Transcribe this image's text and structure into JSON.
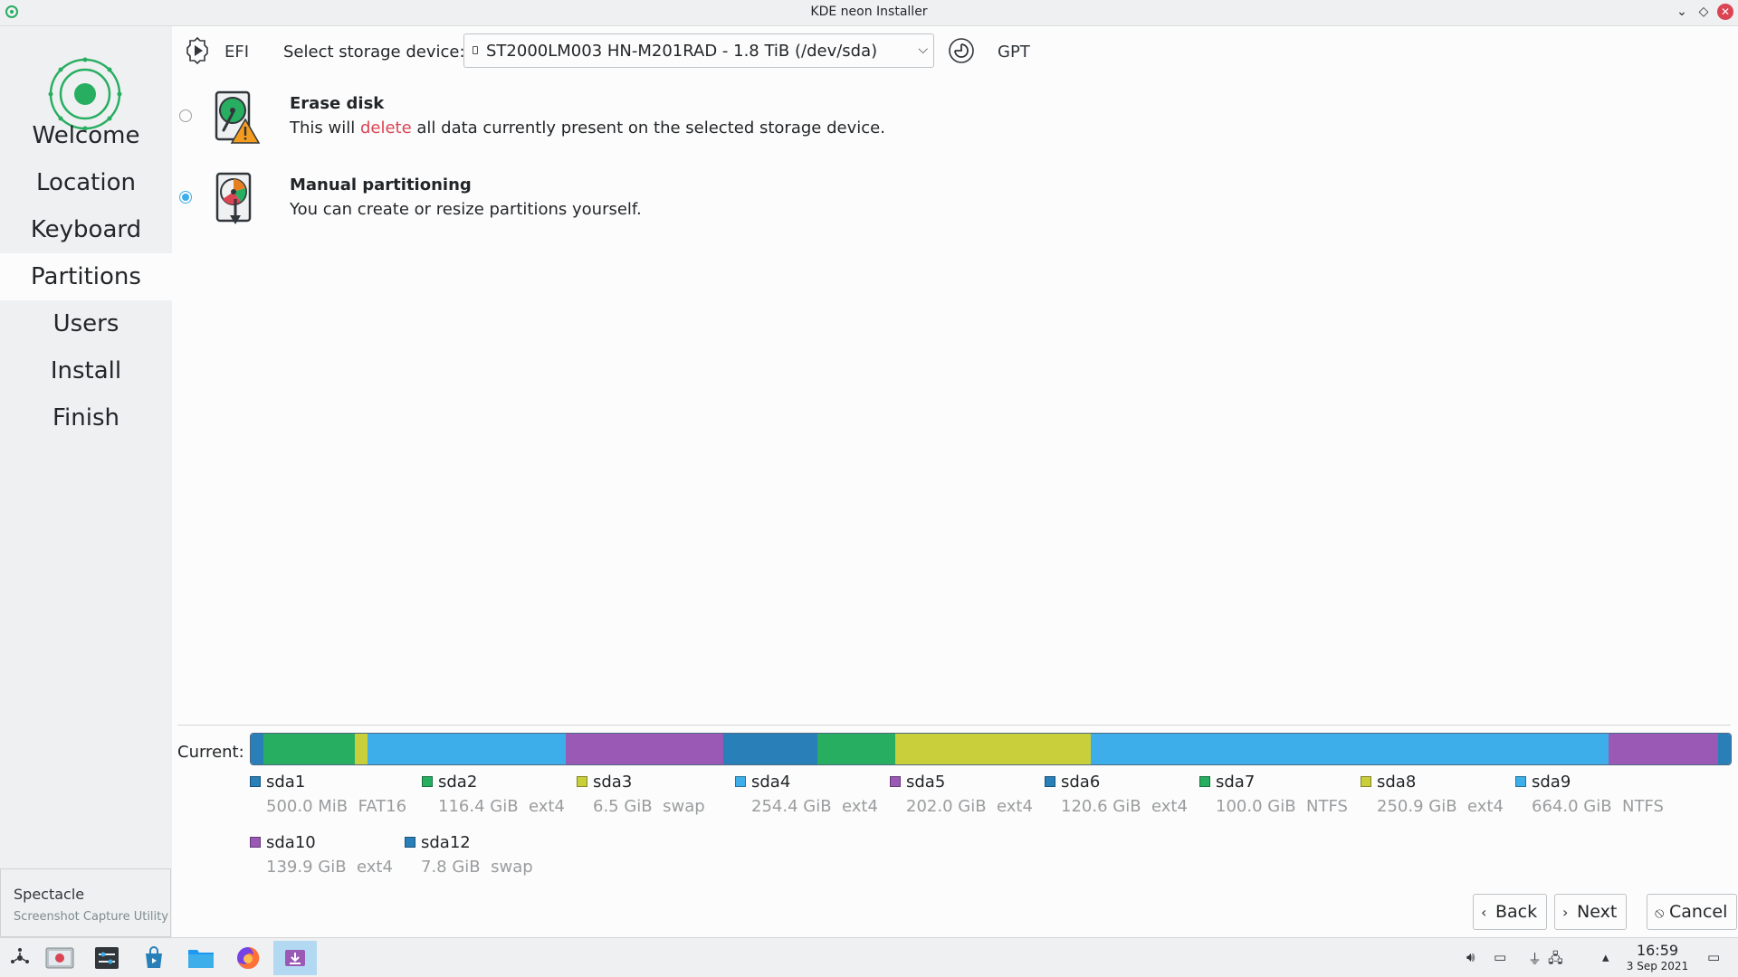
{
  "window": {
    "title": "KDE neon Installer"
  },
  "sidebar": {
    "items": [
      {
        "label": "Welcome"
      },
      {
        "label": "Location"
      },
      {
        "label": "Keyboard"
      },
      {
        "label": "Partitions",
        "active": true
      },
      {
        "label": "Users"
      },
      {
        "label": "Install"
      },
      {
        "label": "Finish"
      }
    ]
  },
  "topbar": {
    "firmware": "EFI",
    "select_label": "Select storage device:",
    "device": "ST2000LM003 HN-M201RAD - 1.8 TiB (/dev/sda)",
    "partition_table": "GPT"
  },
  "options": {
    "erase": {
      "title": "Erase disk",
      "desc_before": "This will ",
      "desc_highlight": "delete",
      "desc_after": " all data currently present on the selected storage device.",
      "selected": false
    },
    "manual": {
      "title": "Manual partitioning",
      "desc": "You can create or resize partitions yourself.",
      "selected": true
    }
  },
  "current": {
    "label": "Current:",
    "partitions": [
      {
        "name": "sda1",
        "size": "500.0 MiB",
        "fs": "FAT16",
        "color": "#2980b9",
        "size_gib": 0.49
      },
      {
        "name": "sda2",
        "size": "116.4 GiB",
        "fs": "ext4",
        "color": "#27ae60",
        "size_gib": 116.4
      },
      {
        "name": "sda3",
        "size": "6.5 GiB",
        "fs": "swap",
        "color": "#c9ce3b",
        "size_gib": 6.5
      },
      {
        "name": "sda4",
        "size": "254.4 GiB",
        "fs": "ext4",
        "color": "#3daee9",
        "size_gib": 254.4
      },
      {
        "name": "sda5",
        "size": "202.0 GiB",
        "fs": "ext4",
        "color": "#9b59b6",
        "size_gib": 202.0
      },
      {
        "name": "sda6",
        "size": "120.6 GiB",
        "fs": "ext4",
        "color": "#2980b9",
        "size_gib": 120.6
      },
      {
        "name": "sda7",
        "size": "100.0 GiB",
        "fs": "NTFS",
        "color": "#27ae60",
        "size_gib": 100.0
      },
      {
        "name": "sda8",
        "size": "250.9 GiB",
        "fs": "ext4",
        "color": "#c9ce3b",
        "size_gib": 250.9
      },
      {
        "name": "sda9",
        "size": "664.0 GiB",
        "fs": "NTFS",
        "color": "#3daee9",
        "size_gib": 664.0
      },
      {
        "name": "sda10",
        "size": "139.9 GiB",
        "fs": "ext4",
        "color": "#9b59b6",
        "size_gib": 139.9
      },
      {
        "name": "sda12",
        "size": "7.8 GiB",
        "fs": "swap",
        "color": "#2980b9",
        "size_gib": 7.8
      }
    ]
  },
  "buttons": {
    "back": "Back",
    "next": "Next",
    "cancel": "Cancel"
  },
  "tooltip": {
    "title": "Spectacle",
    "subtitle": "Screenshot Capture Utility"
  },
  "taskbar": {
    "apps": [
      "launcher",
      "spectacle",
      "system-settings",
      "discover",
      "dolphin",
      "firefox",
      "installer"
    ],
    "time": "16:59",
    "date": "3 Sep 2021"
  }
}
